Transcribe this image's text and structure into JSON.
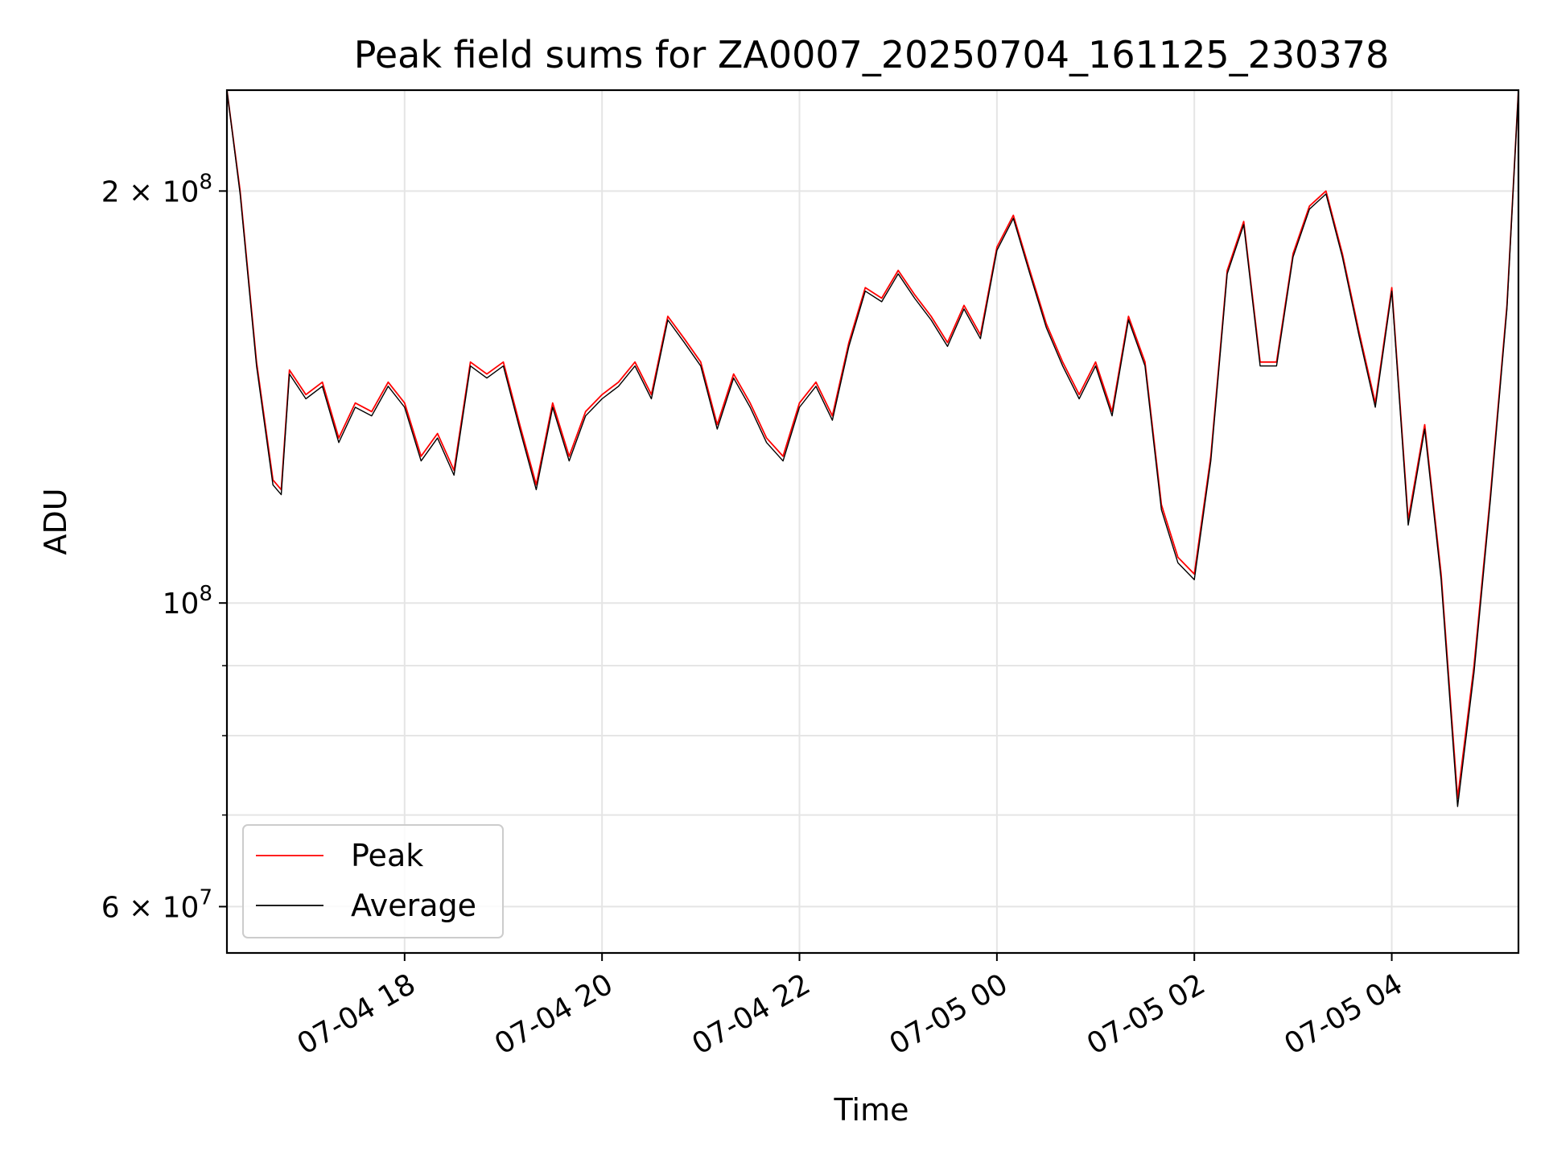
{
  "chart_data": {
    "type": "line",
    "title": "Peak field sums for ZA0007_20250704_161125_230378",
    "xlabel": "Time",
    "ylabel": "ADU",
    "yscale": "log",
    "ylim": [
      55500000,
      237000000
    ],
    "xlim": [
      "2025-07-04 16:12",
      "2025-07-05 05:17"
    ],
    "grid": true,
    "legend_position": "lower-left",
    "x_ticks": [
      {
        "value": "2025-07-04 18:00",
        "label": "07-04 18"
      },
      {
        "value": "2025-07-04 20:00",
        "label": "07-04 20"
      },
      {
        "value": "2025-07-04 22:00",
        "label": "07-04 22"
      },
      {
        "value": "2025-07-05 00:00",
        "label": "07-05 00"
      },
      {
        "value": "2025-07-05 02:00",
        "label": "07-05 02"
      },
      {
        "value": "2025-07-05 04:00",
        "label": "07-05 04"
      }
    ],
    "y_ticks": [
      {
        "value": 200000000,
        "label": "2 × 10",
        "exp": "8"
      },
      {
        "value": 100000000,
        "label": "10",
        "exp": "8"
      },
      {
        "value": 60000000,
        "label": "6 × 10",
        "exp": "7"
      }
    ],
    "y_minor_ticks": [
      70000000,
      80000000,
      90000000
    ],
    "series": [
      {
        "name": "Peak",
        "color": "#ff0000",
        "x": [
          "2025-07-04 16:12",
          "2025-07-04 16:20",
          "2025-07-04 16:30",
          "2025-07-04 16:40",
          "2025-07-04 16:45",
          "2025-07-04 16:50",
          "2025-07-04 17:00",
          "2025-07-04 17:10",
          "2025-07-04 17:20",
          "2025-07-04 17:30",
          "2025-07-04 17:40",
          "2025-07-04 17:50",
          "2025-07-04 18:00",
          "2025-07-04 18:10",
          "2025-07-04 18:20",
          "2025-07-04 18:30",
          "2025-07-04 18:40",
          "2025-07-04 18:50",
          "2025-07-04 19:00",
          "2025-07-04 19:10",
          "2025-07-04 19:20",
          "2025-07-04 19:30",
          "2025-07-04 19:40",
          "2025-07-04 19:50",
          "2025-07-04 20:00",
          "2025-07-04 20:10",
          "2025-07-04 20:20",
          "2025-07-04 20:30",
          "2025-07-04 20:40",
          "2025-07-04 20:50",
          "2025-07-04 21:00",
          "2025-07-04 21:10",
          "2025-07-04 21:20",
          "2025-07-04 21:30",
          "2025-07-04 21:40",
          "2025-07-04 21:50",
          "2025-07-04 22:00",
          "2025-07-04 22:10",
          "2025-07-04 22:20",
          "2025-07-04 22:30",
          "2025-07-04 22:40",
          "2025-07-04 22:50",
          "2025-07-04 23:00",
          "2025-07-04 23:10",
          "2025-07-04 23:20",
          "2025-07-04 23:30",
          "2025-07-04 23:40",
          "2025-07-04 23:50",
          "2025-07-05 00:00",
          "2025-07-05 00:10",
          "2025-07-05 00:20",
          "2025-07-05 00:30",
          "2025-07-05 00:40",
          "2025-07-05 00:50",
          "2025-07-05 01:00",
          "2025-07-05 01:10",
          "2025-07-05 01:20",
          "2025-07-05 01:30",
          "2025-07-05 01:40",
          "2025-07-05 01:50",
          "2025-07-05 02:00",
          "2025-07-05 02:10",
          "2025-07-05 02:20",
          "2025-07-05 02:30",
          "2025-07-05 02:40",
          "2025-07-05 02:50",
          "2025-07-05 03:00",
          "2025-07-05 03:10",
          "2025-07-05 03:20",
          "2025-07-05 03:30",
          "2025-07-05 03:40",
          "2025-07-05 03:50",
          "2025-07-05 04:00",
          "2025-07-05 04:10",
          "2025-07-05 04:20",
          "2025-07-05 04:30",
          "2025-07-05 04:40",
          "2025-07-05 04:50",
          "2025-07-05 05:00",
          "2025-07-05 05:10",
          "2025-07-05 05:17"
        ],
        "values": [
          237000000,
          200000000,
          150000000,
          123000000,
          121000000,
          148000000,
          142000000,
          145000000,
          132000000,
          140000000,
          138000000,
          145000000,
          140000000,
          128000000,
          133000000,
          125000000,
          150000000,
          147000000,
          150000000,
          135000000,
          122000000,
          140000000,
          128000000,
          138000000,
          142000000,
          145000000,
          150000000,
          142000000,
          162000000,
          156000000,
          150000000,
          135000000,
          147000000,
          140000000,
          132000000,
          128000000,
          140000000,
          145000000,
          137000000,
          155000000,
          170000000,
          167000000,
          175000000,
          168000000,
          162000000,
          155000000,
          165000000,
          157000000,
          182000000,
          192000000,
          175000000,
          160000000,
          150000000,
          142000000,
          150000000,
          138000000,
          162000000,
          150000000,
          118000000,
          108000000,
          105000000,
          128000000,
          175000000,
          190000000,
          150000000,
          150000000,
          180000000,
          195000000,
          200000000,
          180000000,
          158000000,
          140000000,
          170000000,
          115000000,
          135000000,
          105000000,
          72000000,
          90000000,
          120000000,
          165000000,
          237000000
        ]
      },
      {
        "name": "Average",
        "color": "#000000",
        "x": [
          "2025-07-04 16:12",
          "2025-07-04 16:20",
          "2025-07-04 16:30",
          "2025-07-04 16:40",
          "2025-07-04 16:45",
          "2025-07-04 16:50",
          "2025-07-04 17:00",
          "2025-07-04 17:10",
          "2025-07-04 17:20",
          "2025-07-04 17:30",
          "2025-07-04 17:40",
          "2025-07-04 17:50",
          "2025-07-04 18:00",
          "2025-07-04 18:10",
          "2025-07-04 18:20",
          "2025-07-04 18:30",
          "2025-07-04 18:40",
          "2025-07-04 18:50",
          "2025-07-04 19:00",
          "2025-07-04 19:10",
          "2025-07-04 19:20",
          "2025-07-04 19:30",
          "2025-07-04 19:40",
          "2025-07-04 19:50",
          "2025-07-04 20:00",
          "2025-07-04 20:10",
          "2025-07-04 20:20",
          "2025-07-04 20:30",
          "2025-07-04 20:40",
          "2025-07-04 20:50",
          "2025-07-04 21:00",
          "2025-07-04 21:10",
          "2025-07-04 21:20",
          "2025-07-04 21:30",
          "2025-07-04 21:40",
          "2025-07-04 21:50",
          "2025-07-04 22:00",
          "2025-07-04 22:10",
          "2025-07-04 22:20",
          "2025-07-04 22:30",
          "2025-07-04 22:40",
          "2025-07-04 22:50",
          "2025-07-04 23:00",
          "2025-07-04 23:10",
          "2025-07-04 23:20",
          "2025-07-04 23:30",
          "2025-07-04 23:40",
          "2025-07-04 23:50",
          "2025-07-05 00:00",
          "2025-07-05 00:10",
          "2025-07-05 00:20",
          "2025-07-05 00:30",
          "2025-07-05 00:40",
          "2025-07-05 00:50",
          "2025-07-05 01:00",
          "2025-07-05 01:10",
          "2025-07-05 01:20",
          "2025-07-05 01:30",
          "2025-07-05 01:40",
          "2025-07-05 01:50",
          "2025-07-05 02:00",
          "2025-07-05 02:10",
          "2025-07-05 02:20",
          "2025-07-05 02:30",
          "2025-07-05 02:40",
          "2025-07-05 02:50",
          "2025-07-05 03:00",
          "2025-07-05 03:10",
          "2025-07-05 03:20",
          "2025-07-05 03:30",
          "2025-07-05 03:40",
          "2025-07-05 03:50",
          "2025-07-05 04:00",
          "2025-07-05 04:10",
          "2025-07-05 04:20",
          "2025-07-05 04:30",
          "2025-07-05 04:40",
          "2025-07-05 04:50",
          "2025-07-05 05:00",
          "2025-07-05 05:10",
          "2025-07-05 05:17"
        ],
        "values": [
          237000000,
          199000000,
          149000000,
          122000000,
          120000000,
          147000000,
          141000000,
          144000000,
          131000000,
          139000000,
          137000000,
          144000000,
          139000000,
          127000000,
          132000000,
          124000000,
          149000000,
          146000000,
          149000000,
          134000000,
          121000000,
          139000000,
          127000000,
          137000000,
          141000000,
          144000000,
          149000000,
          141000000,
          161000000,
          155000000,
          149000000,
          134000000,
          146000000,
          139000000,
          131000000,
          127000000,
          139000000,
          144000000,
          136000000,
          154000000,
          169000000,
          166000000,
          174000000,
          167000000,
          161000000,
          154000000,
          164000000,
          156000000,
          181000000,
          191000000,
          174000000,
          159000000,
          149000000,
          141000000,
          149000000,
          137000000,
          161000000,
          149000000,
          117000000,
          107000000,
          104000000,
          127000000,
          174000000,
          189000000,
          149000000,
          149000000,
          179000000,
          194000000,
          199000000,
          179000000,
          157000000,
          139000000,
          169000000,
          114000000,
          134000000,
          104000000,
          71000000,
          89000000,
          119000000,
          164000000,
          237000000
        ]
      }
    ]
  }
}
